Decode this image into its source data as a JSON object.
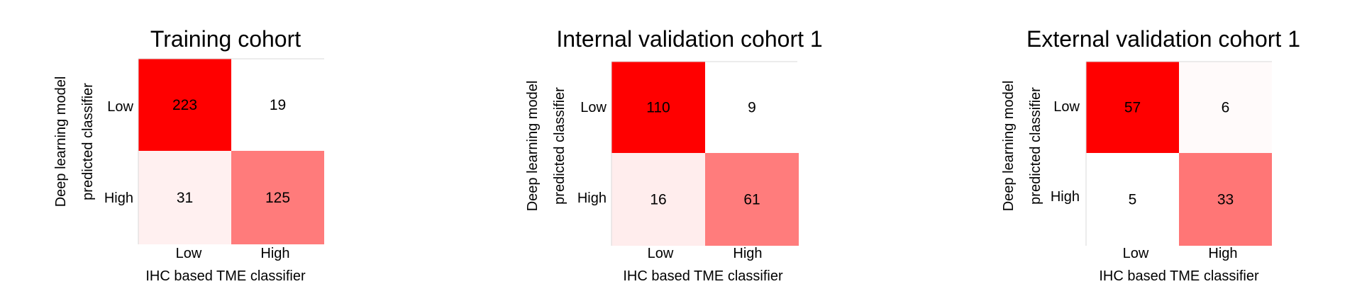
{
  "colors": {
    "max": "#ff0000",
    "min": "#ffffff"
  },
  "chart_data": [
    {
      "type": "heatmap",
      "title": "Training cohort",
      "ylabel_lines": [
        "Deep learning model",
        "predicted classifier"
      ],
      "xlabel": "IHC based TME classifier",
      "row_labels": [
        "Low",
        "High"
      ],
      "col_labels": [
        "Low",
        "High"
      ],
      "values": [
        [
          223,
          19
        ],
        [
          31,
          125
        ]
      ],
      "grid": false
    },
    {
      "type": "heatmap",
      "title": "Internal validation cohort 1",
      "ylabel_lines": [
        "Deep learning model",
        "predicted classifier"
      ],
      "xlabel": "IHC based TME classifier",
      "row_labels": [
        "Low",
        "High"
      ],
      "col_labels": [
        "Low",
        "High"
      ],
      "values": [
        [
          110,
          9
        ],
        [
          16,
          61
        ]
      ],
      "grid": false
    },
    {
      "type": "heatmap",
      "title": "External validation cohort 1",
      "ylabel_lines": [
        "Deep learning model",
        "predicted classifier"
      ],
      "xlabel": "IHC based TME classifier",
      "row_labels": [
        "Low",
        "High"
      ],
      "col_labels": [
        "Low",
        "High"
      ],
      "values": [
        [
          57,
          6
        ],
        [
          5,
          33
        ]
      ],
      "grid": false
    }
  ]
}
